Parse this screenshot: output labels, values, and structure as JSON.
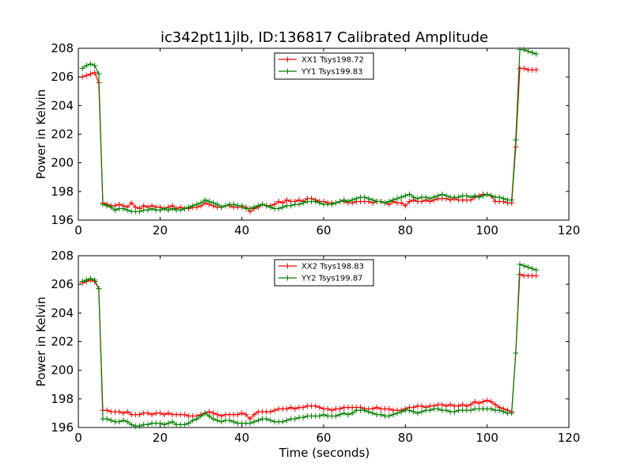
{
  "title": "ic342pt11jlb, ID:136817 Calibrated Amplitude",
  "colors": {
    "xx": "#ff0000",
    "yy": "#008000"
  },
  "chart_data": [
    {
      "type": "line",
      "title": "ic342pt11jlb, ID:136817 Calibrated Amplitude",
      "xlabel": "",
      "ylabel": "Power in Kelvin",
      "xlim": [
        0,
        120
      ],
      "ylim": [
        196,
        208
      ],
      "xticks": [
        "0",
        "20",
        "40",
        "60",
        "80",
        "100",
        "120"
      ],
      "yticks": [
        "196",
        "198",
        "200",
        "202",
        "204",
        "206",
        "208"
      ],
      "grid": false,
      "legend_position": "top-center",
      "series": [
        {
          "name": "XX1 Tsys198.72",
          "color": "#ff0000",
          "x": [
            1,
            2,
            3,
            4,
            5,
            6,
            7,
            8,
            9,
            10,
            11,
            12,
            13,
            14,
            15,
            16,
            17,
            18,
            19,
            20,
            21,
            22,
            23,
            24,
            25,
            26,
            27,
            28,
            29,
            30,
            31,
            32,
            33,
            34,
            35,
            36,
            37,
            38,
            39,
            40,
            41,
            42,
            43,
            44,
            45,
            46,
            47,
            48,
            49,
            50,
            51,
            52,
            53,
            54,
            55,
            56,
            57,
            58,
            59,
            60,
            61,
            62,
            63,
            64,
            65,
            66,
            67,
            68,
            69,
            70,
            71,
            72,
            73,
            74,
            75,
            76,
            77,
            78,
            79,
            80,
            81,
            82,
            83,
            84,
            85,
            86,
            87,
            88,
            89,
            90,
            91,
            92,
            93,
            94,
            95,
            96,
            97,
            98,
            99,
            100,
            101,
            102,
            103,
            104,
            105,
            106,
            107,
            108,
            109,
            110,
            111,
            112
          ],
          "values": [
            206.0,
            206.1,
            206.2,
            206.3,
            205.6,
            197.2,
            197.1,
            197.0,
            197.0,
            197.1,
            197.0,
            196.9,
            197.2,
            196.9,
            196.8,
            197.0,
            196.9,
            197.0,
            196.9,
            196.9,
            196.8,
            196.9,
            197.0,
            196.8,
            196.9,
            196.8,
            196.8,
            196.9,
            196.9,
            197.0,
            197.2,
            197.1,
            197.0,
            196.9,
            196.9,
            197.0,
            197.0,
            196.9,
            196.9,
            196.9,
            196.9,
            196.6,
            196.8,
            196.9,
            197.1,
            197.0,
            197.0,
            197.1,
            197.3,
            197.2,
            197.4,
            197.3,
            197.3,
            197.4,
            197.3,
            197.5,
            197.5,
            197.4,
            197.3,
            197.3,
            197.2,
            197.2,
            197.2,
            197.3,
            197.3,
            197.2,
            197.2,
            197.3,
            197.3,
            197.3,
            197.3,
            197.2,
            197.3,
            197.3,
            197.2,
            197.1,
            197.3,
            197.2,
            197.2,
            197.0,
            197.3,
            197.4,
            197.3,
            197.3,
            197.4,
            197.3,
            197.4,
            197.5,
            197.5,
            197.5,
            197.4,
            197.5,
            197.4,
            197.4,
            197.4,
            197.4,
            197.6,
            197.7,
            197.8,
            197.8,
            197.7,
            197.3,
            197.3,
            197.3,
            197.2,
            197.2,
            201.1,
            206.6,
            206.6,
            206.5,
            206.5,
            206.5
          ]
        },
        {
          "name": "YY1 Tsys199.83",
          "color": "#008000",
          "x": [
            1,
            2,
            3,
            4,
            5,
            6,
            7,
            8,
            9,
            10,
            11,
            12,
            13,
            14,
            15,
            16,
            17,
            18,
            19,
            20,
            21,
            22,
            23,
            24,
            25,
            26,
            27,
            28,
            29,
            30,
            31,
            32,
            33,
            34,
            35,
            36,
            37,
            38,
            39,
            40,
            41,
            42,
            43,
            44,
            45,
            46,
            47,
            48,
            49,
            50,
            51,
            52,
            53,
            54,
            55,
            56,
            57,
            58,
            59,
            60,
            61,
            62,
            63,
            64,
            65,
            66,
            67,
            68,
            69,
            70,
            71,
            72,
            73,
            74,
            75,
            76,
            77,
            78,
            79,
            80,
            81,
            82,
            83,
            84,
            85,
            86,
            87,
            88,
            89,
            90,
            91,
            92,
            93,
            94,
            95,
            96,
            97,
            98,
            99,
            100,
            101,
            102,
            103,
            104,
            105,
            106,
            107,
            108,
            109,
            110,
            111,
            112
          ],
          "values": [
            206.6,
            206.8,
            206.9,
            206.8,
            206.2,
            197.1,
            197.0,
            196.9,
            196.7,
            196.8,
            196.8,
            196.7,
            196.6,
            196.6,
            196.6,
            196.7,
            196.7,
            196.8,
            196.7,
            196.7,
            196.8,
            196.7,
            196.8,
            196.7,
            196.7,
            196.8,
            196.9,
            197.0,
            197.1,
            197.2,
            197.4,
            197.3,
            197.2,
            197.1,
            196.9,
            197.0,
            197.1,
            197.1,
            197.0,
            197.0,
            196.8,
            196.8,
            196.9,
            197.0,
            197.1,
            197.0,
            196.9,
            196.8,
            196.8,
            196.9,
            197.0,
            197.0,
            197.1,
            197.1,
            197.2,
            197.3,
            197.3,
            197.3,
            197.2,
            197.1,
            197.1,
            197.1,
            197.2,
            197.3,
            197.4,
            197.3,
            197.4,
            197.5,
            197.6,
            197.6,
            197.5,
            197.4,
            197.3,
            197.3,
            197.2,
            197.3,
            197.4,
            197.5,
            197.6,
            197.7,
            197.8,
            197.6,
            197.5,
            197.6,
            197.6,
            197.5,
            197.6,
            197.7,
            197.8,
            197.7,
            197.6,
            197.6,
            197.6,
            197.7,
            197.7,
            197.6,
            197.7,
            197.6,
            197.7,
            197.8,
            197.7,
            197.6,
            197.6,
            197.5,
            197.4,
            197.4,
            201.6,
            207.9,
            207.9,
            207.8,
            207.7,
            207.6
          ]
        }
      ]
    },
    {
      "type": "line",
      "title": "",
      "xlabel": "Time (seconds)",
      "ylabel": "Power in Kelvin",
      "xlim": [
        0,
        120
      ],
      "ylim": [
        196,
        208
      ],
      "xticks": [
        "0",
        "20",
        "40",
        "60",
        "80",
        "100",
        "120"
      ],
      "yticks": [
        "196",
        "198",
        "200",
        "202",
        "204",
        "206",
        "208"
      ],
      "grid": false,
      "legend_position": "top-center",
      "series": [
        {
          "name": "XX2 Tsys198.83",
          "color": "#ff0000",
          "x": [
            1,
            2,
            3,
            4,
            5,
            6,
            7,
            8,
            9,
            10,
            11,
            12,
            13,
            14,
            15,
            16,
            17,
            18,
            19,
            20,
            21,
            22,
            23,
            24,
            25,
            26,
            27,
            28,
            29,
            30,
            31,
            32,
            33,
            34,
            35,
            36,
            37,
            38,
            39,
            40,
            41,
            42,
            43,
            44,
            45,
            46,
            47,
            48,
            49,
            50,
            51,
            52,
            53,
            54,
            55,
            56,
            57,
            58,
            59,
            60,
            61,
            62,
            63,
            64,
            65,
            66,
            67,
            68,
            69,
            70,
            71,
            72,
            73,
            74,
            75,
            76,
            77,
            78,
            79,
            80,
            81,
            82,
            83,
            84,
            85,
            86,
            87,
            88,
            89,
            90,
            91,
            92,
            93,
            94,
            95,
            96,
            97,
            98,
            99,
            100,
            101,
            102,
            103,
            104,
            105,
            106,
            107,
            108,
            109,
            110,
            111,
            112
          ],
          "values": [
            206.1,
            206.2,
            206.3,
            206.2,
            205.7,
            197.2,
            197.2,
            197.1,
            197.1,
            197.1,
            197.0,
            197.1,
            196.9,
            196.9,
            196.9,
            197.0,
            197.0,
            196.9,
            197.0,
            197.0,
            196.9,
            197.0,
            196.9,
            196.9,
            196.9,
            196.9,
            196.8,
            196.8,
            196.8,
            196.9,
            197.0,
            197.1,
            197.0,
            196.9,
            196.8,
            196.9,
            196.9,
            196.9,
            196.9,
            197.0,
            196.9,
            196.6,
            196.9,
            197.1,
            197.1,
            197.1,
            197.1,
            197.2,
            197.3,
            197.3,
            197.3,
            197.4,
            197.3,
            197.4,
            197.4,
            197.5,
            197.5,
            197.5,
            197.4,
            197.3,
            197.3,
            197.2,
            197.3,
            197.3,
            197.4,
            197.4,
            197.4,
            197.4,
            197.4,
            197.3,
            197.3,
            197.3,
            197.4,
            197.3,
            197.3,
            197.3,
            197.2,
            197.2,
            197.2,
            197.3,
            197.4,
            197.4,
            197.5,
            197.5,
            197.4,
            197.5,
            197.5,
            197.6,
            197.6,
            197.5,
            197.6,
            197.5,
            197.5,
            197.6,
            197.5,
            197.6,
            197.8,
            197.7,
            197.8,
            197.9,
            197.8,
            197.6,
            197.4,
            197.3,
            197.2,
            197.1,
            201.2,
            206.7,
            206.6,
            206.6,
            206.6,
            206.6
          ]
        },
        {
          "name": "YY2 Tsys199.87",
          "color": "#008000",
          "x": [
            1,
            2,
            3,
            4,
            5,
            6,
            7,
            8,
            9,
            10,
            11,
            12,
            13,
            14,
            15,
            16,
            17,
            18,
            19,
            20,
            21,
            22,
            23,
            24,
            25,
            26,
            27,
            28,
            29,
            30,
            31,
            32,
            33,
            34,
            35,
            36,
            37,
            38,
            39,
            40,
            41,
            42,
            43,
            44,
            45,
            46,
            47,
            48,
            49,
            50,
            51,
            52,
            53,
            54,
            55,
            56,
            57,
            58,
            59,
            60,
            61,
            62,
            63,
            64,
            65,
            66,
            67,
            68,
            69,
            70,
            71,
            72,
            73,
            74,
            75,
            76,
            77,
            78,
            79,
            80,
            81,
            82,
            83,
            84,
            85,
            86,
            87,
            88,
            89,
            90,
            91,
            92,
            93,
            94,
            95,
            96,
            97,
            98,
            99,
            100,
            101,
            102,
            103,
            104,
            105,
            106,
            107,
            108,
            109,
            110,
            111,
            112
          ],
          "values": [
            206.2,
            206.3,
            206.4,
            206.3,
            205.7,
            196.6,
            196.6,
            196.5,
            196.4,
            196.4,
            196.5,
            196.4,
            196.2,
            196.1,
            196.1,
            196.2,
            196.2,
            196.3,
            196.3,
            196.3,
            196.2,
            196.3,
            196.4,
            196.2,
            196.2,
            196.2,
            196.3,
            196.5,
            196.6,
            196.8,
            197.0,
            196.8,
            196.6,
            196.5,
            196.4,
            196.5,
            196.5,
            196.4,
            196.3,
            196.3,
            196.3,
            196.3,
            196.4,
            196.5,
            196.6,
            196.6,
            196.5,
            196.4,
            196.4,
            196.4,
            196.5,
            196.6,
            196.6,
            196.7,
            196.7,
            196.8,
            196.8,
            196.8,
            196.8,
            196.9,
            196.8,
            196.8,
            196.8,
            196.9,
            197.0,
            196.9,
            197.0,
            197.2,
            197.2,
            197.2,
            197.1,
            197.0,
            196.9,
            196.9,
            196.8,
            196.8,
            196.9,
            197.0,
            197.1,
            197.2,
            197.2,
            197.1,
            197.0,
            197.1,
            197.2,
            197.2,
            197.3,
            197.3,
            197.2,
            197.2,
            197.1,
            197.1,
            197.2,
            197.2,
            197.2,
            197.2,
            197.3,
            197.3,
            197.3,
            197.3,
            197.3,
            197.2,
            197.2,
            197.1,
            197.0,
            197.0,
            201.2,
            207.4,
            207.3,
            207.2,
            207.1,
            207.0
          ]
        }
      ]
    }
  ]
}
